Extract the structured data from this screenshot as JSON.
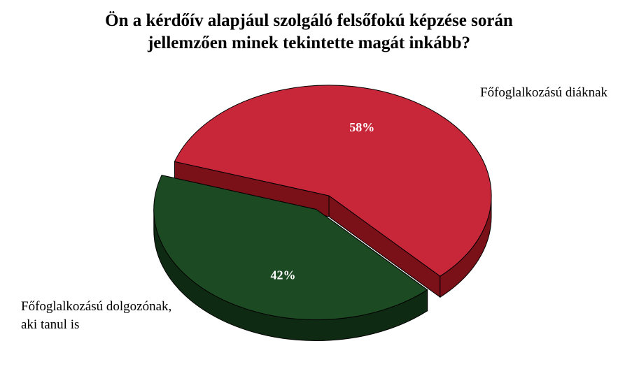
{
  "chart_data": {
    "type": "pie",
    "title_lines": [
      "Ön a kérdőív alapjául szolgáló felsőfokú  képzése során",
      "jellemzően minek tekintette magát inkább?"
    ],
    "categories": [
      "Főfoglalkozású diáknak",
      "Főfoglalkozású dolgozónak, aki tanul is"
    ],
    "values": [
      58,
      42
    ],
    "data_labels": [
      "58%",
      "42%"
    ],
    "exploded": [
      false,
      true
    ],
    "legend": "none",
    "colors": {
      "slice_top": [
        "#c8273a",
        "#1c4a22"
      ],
      "slice_side": [
        "#7a1018",
        "#0f2a12"
      ],
      "outline": "#000000",
      "data_label": "#ffffff"
    }
  }
}
